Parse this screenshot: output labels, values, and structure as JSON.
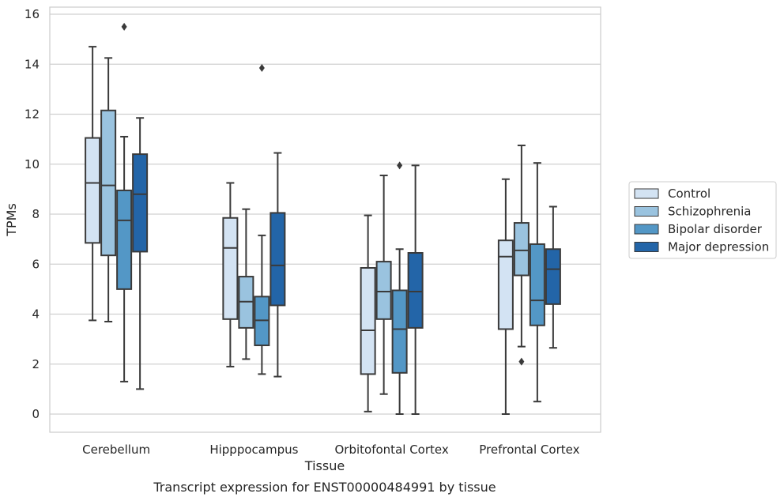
{
  "chart_data": {
    "type": "box",
    "title": "",
    "caption": "Transcript expression for ENST00000484991 by tissue",
    "xlabel": "Tissue",
    "ylabel": "TPMs",
    "ylim": [
      -0.75,
      16.3
    ],
    "yticks": [
      0,
      2,
      4,
      6,
      8,
      10,
      12,
      14,
      16
    ],
    "grid": "horizontal",
    "legend_position": "right",
    "categories": [
      "Cerebellum",
      "Hipppocampus",
      "Orbitofontal Cortex",
      "Prefrontal Cortex"
    ],
    "series": [
      {
        "name": "Control",
        "color": "#d3e3f3",
        "boxes": [
          {
            "whislo": 3.75,
            "q1": 6.85,
            "med": 9.25,
            "q3": 11.05,
            "whishi": 14.7,
            "fliers": []
          },
          {
            "whislo": 1.9,
            "q1": 3.8,
            "med": 6.65,
            "q3": 7.85,
            "whishi": 9.25,
            "fliers": []
          },
          {
            "whislo": 0.1,
            "q1": 1.6,
            "med": 3.35,
            "q3": 5.85,
            "whishi": 7.95,
            "fliers": []
          },
          {
            "whislo": 0.0,
            "q1": 3.4,
            "med": 6.3,
            "q3": 6.95,
            "whishi": 9.4,
            "fliers": []
          }
        ]
      },
      {
        "name": "Schizophrenia",
        "color": "#9ac3df",
        "boxes": [
          {
            "whislo": 3.7,
            "q1": 6.35,
            "med": 9.15,
            "q3": 12.15,
            "whishi": 14.25,
            "fliers": []
          },
          {
            "whislo": 2.2,
            "q1": 3.45,
            "med": 4.5,
            "q3": 5.5,
            "whishi": 8.2,
            "fliers": []
          },
          {
            "whislo": 0.8,
            "q1": 3.8,
            "med": 4.9,
            "q3": 6.1,
            "whishi": 9.55,
            "fliers": []
          },
          {
            "whislo": 2.7,
            "q1": 5.55,
            "med": 6.55,
            "q3": 7.65,
            "whishi": 10.75,
            "fliers": [
              2.1
            ]
          }
        ]
      },
      {
        "name": "Bipolar disorder",
        "color": "#5397c6",
        "boxes": [
          {
            "whislo": 1.3,
            "q1": 5.0,
            "med": 7.75,
            "q3": 8.95,
            "whishi": 11.1,
            "fliers": [
              15.5
            ]
          },
          {
            "whislo": 1.6,
            "q1": 2.75,
            "med": 3.75,
            "q3": 4.7,
            "whishi": 7.15,
            "fliers": [
              13.85
            ]
          },
          {
            "whislo": 0.0,
            "q1": 1.65,
            "med": 3.4,
            "q3": 4.95,
            "whishi": 6.6,
            "fliers": [
              9.95
            ]
          },
          {
            "whislo": 0.5,
            "q1": 3.55,
            "med": 4.55,
            "q3": 6.8,
            "whishi": 10.05,
            "fliers": []
          }
        ]
      },
      {
        "name": "Major depression",
        "color": "#2365a8",
        "boxes": [
          {
            "whislo": 1.0,
            "q1": 6.5,
            "med": 8.8,
            "q3": 10.4,
            "whishi": 11.85,
            "fliers": []
          },
          {
            "whislo": 1.5,
            "q1": 4.35,
            "med": 5.95,
            "q3": 8.05,
            "whishi": 10.45,
            "fliers": []
          },
          {
            "whislo": 0.0,
            "q1": 3.45,
            "med": 4.9,
            "q3": 6.45,
            "whishi": 9.95,
            "fliers": []
          },
          {
            "whislo": 2.65,
            "q1": 4.4,
            "med": 5.8,
            "q3": 6.6,
            "whishi": 8.3,
            "fliers": []
          }
        ]
      }
    ]
  }
}
